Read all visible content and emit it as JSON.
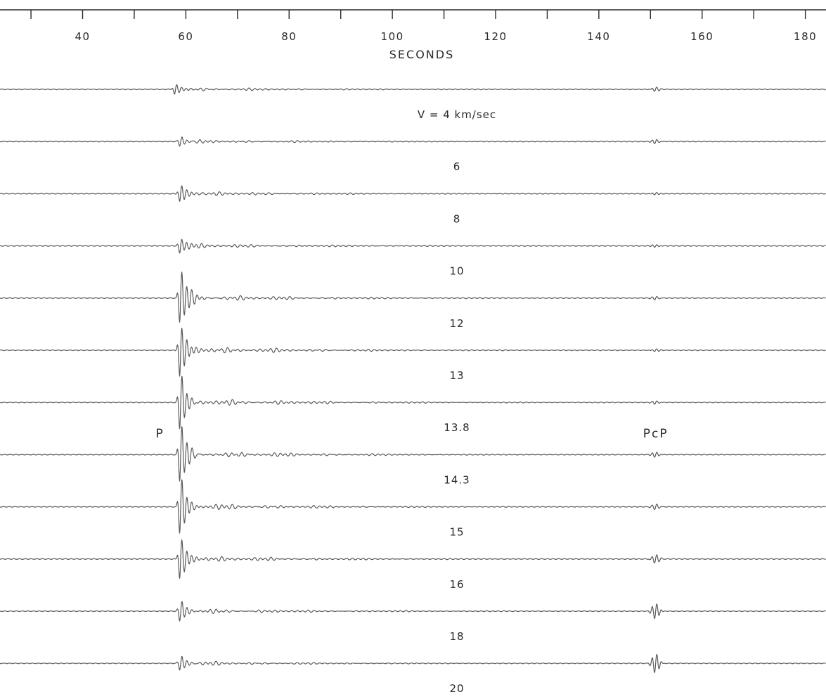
{
  "chart_data": {
    "type": "line",
    "title": "",
    "xlabel": "SECONDS",
    "ylabel": "",
    "xlim": [
      24,
      184
    ],
    "x_tick_labels": [
      {
        "value": 40,
        "label": "40"
      },
      {
        "value": 60,
        "label": "60"
      },
      {
        "value": 80,
        "label": "80"
      },
      {
        "value": 100,
        "label": "100"
      },
      {
        "value": 120,
        "label": "120"
      },
      {
        "value": 140,
        "label": "140"
      },
      {
        "value": 160,
        "label": "160"
      },
      {
        "value": 180,
        "label": "180"
      }
    ],
    "x_minor_ticks": [
      30,
      50,
      70,
      90,
      110,
      130,
      150,
      170
    ],
    "grid": false,
    "legend": "none",
    "series_color": "#5a5a5a",
    "velocity_labels": [
      {
        "after_trace": 1,
        "label": "V = 4 km/sec"
      },
      {
        "after_trace": 2,
        "label": "6"
      },
      {
        "after_trace": 3,
        "label": "8"
      },
      {
        "after_trace": 4,
        "label": "10"
      },
      {
        "after_trace": 5,
        "label": "12"
      },
      {
        "after_trace": 6,
        "label": "13"
      },
      {
        "after_trace": 7,
        "label": "13.8"
      },
      {
        "after_trace": 8,
        "label": "14.3"
      },
      {
        "after_trace": 9,
        "label": "15"
      },
      {
        "after_trace": 10,
        "label": "16"
      },
      {
        "after_trace": 11,
        "label": "18"
      },
      {
        "after_trace": 12,
        "label": "20"
      }
    ],
    "phase_labels": [
      {
        "label": "P",
        "time": 55
      },
      {
        "label": "PcP",
        "time": 151
      }
    ],
    "traces": [
      {
        "index": 1,
        "p_time": 58,
        "p_amplitude": 0.12,
        "pcp_time": 151,
        "pcp_amplitude": 0.04,
        "coda_amplitude": 0.04
      },
      {
        "index": 2,
        "p_time": 59,
        "p_amplitude": 0.1,
        "pcp_time": 151,
        "pcp_amplitude": 0.04,
        "coda_amplitude": 0.04
      },
      {
        "index": 3,
        "p_time": 59,
        "p_amplitude": 0.18,
        "pcp_time": 151,
        "pcp_amplitude": 0.03,
        "coda_amplitude": 0.05
      },
      {
        "index": 4,
        "p_time": 59,
        "p_amplitude": 0.16,
        "pcp_time": 151,
        "pcp_amplitude": 0.03,
        "coda_amplitude": 0.05
      },
      {
        "index": 5,
        "p_time": 59,
        "p_amplitude": 0.55,
        "pcp_time": 151,
        "pcp_amplitude": 0.03,
        "coda_amplitude": 0.08
      },
      {
        "index": 6,
        "p_time": 59,
        "p_amplitude": 0.6,
        "pcp_time": 151,
        "pcp_amplitude": 0.03,
        "coda_amplitude": 0.09
      },
      {
        "index": 7,
        "p_time": 59,
        "p_amplitude": 0.6,
        "pcp_time": 151,
        "pcp_amplitude": 0.03,
        "coda_amplitude": 0.09
      },
      {
        "index": 8,
        "p_time": 59,
        "p_amplitude": 0.6,
        "pcp_time": 151,
        "pcp_amplitude": 0.05,
        "coda_amplitude": 0.09
      },
      {
        "index": 9,
        "p_time": 59,
        "p_amplitude": 0.6,
        "pcp_time": 151,
        "pcp_amplitude": 0.05,
        "coda_amplitude": 0.08
      },
      {
        "index": 10,
        "p_time": 59,
        "p_amplitude": 0.45,
        "pcp_time": 151,
        "pcp_amplitude": 0.08,
        "coda_amplitude": 0.07
      },
      {
        "index": 11,
        "p_time": 59,
        "p_amplitude": 0.22,
        "pcp_time": 151,
        "pcp_amplitude": 0.15,
        "coda_amplitude": 0.06
      },
      {
        "index": 12,
        "p_time": 59,
        "p_amplitude": 0.15,
        "pcp_time": 151,
        "pcp_amplitude": 0.18,
        "coda_amplitude": 0.05
      }
    ]
  }
}
